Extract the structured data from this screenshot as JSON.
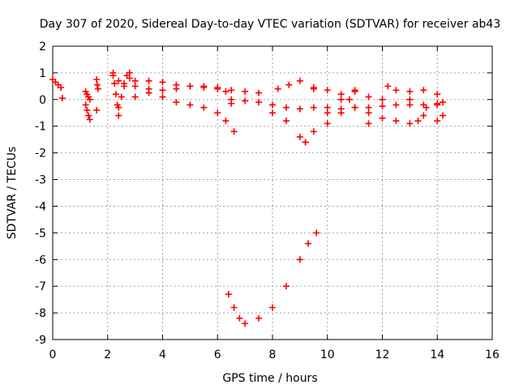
{
  "chart_data": {
    "type": "scatter",
    "title": "Day 307 of 2020, Sidereal Day-to-day VTEC variation (SDTVAR) for receiver ab43",
    "xlabel": "GPS time / hours",
    "ylabel": "SDTVAR / TECUs",
    "xlim": [
      0,
      16
    ],
    "ylim": [
      -9,
      2
    ],
    "xticks": [
      "0",
      "2",
      "4",
      "6",
      "8",
      "10",
      "12",
      "14",
      "16"
    ],
    "yticks": [
      "2",
      "1",
      "0",
      "-1",
      "-2",
      "-3",
      "-4",
      "-5",
      "-6",
      "-7",
      "-8",
      "-9"
    ],
    "grid": true,
    "marker": "+",
    "color": "#ff0000",
    "series": [
      {
        "x": [
          0.0,
          0.1,
          0.2,
          0.3
        ],
        "y": [
          0.75,
          0.65,
          0.55,
          0.45
        ]
      },
      {
        "x": [
          0.35
        ],
        "y": [
          0.05
        ]
      },
      {
        "x": [
          1.2,
          1.25,
          1.3,
          1.35
        ],
        "y": [
          0.3,
          0.2,
          0.1,
          0.0
        ]
      },
      {
        "x": [
          1.2,
          1.25,
          1.3,
          1.35
        ],
        "y": [
          -0.2,
          -0.4,
          -0.6,
          -0.75
        ]
      },
      {
        "x": [
          1.6,
          1.62,
          1.65
        ],
        "y": [
          0.75,
          0.55,
          0.4
        ]
      },
      {
        "x": [
          1.6
        ],
        "y": [
          -0.4
        ]
      },
      {
        "x": [
          2.2,
          2.25,
          2.3,
          2.35,
          2.4
        ],
        "y": [
          1.0,
          0.6,
          0.2,
          -0.2,
          -0.6
        ]
      },
      {
        "x": [
          2.4,
          2.5,
          2.6,
          2.7,
          2.8
        ],
        "y": [
          -0.3,
          0.1,
          0.5,
          0.9,
          1.0
        ]
      },
      {
        "x": [
          2.2,
          2.4,
          2.6,
          2.8
        ],
        "y": [
          0.9,
          0.7,
          0.6,
          0.8
        ]
      },
      {
        "x": [
          3.0,
          3.5,
          4.0,
          4.5,
          5.0,
          5.5,
          6.0,
          6.5,
          7.0,
          7.5
        ],
        "y": [
          0.7,
          0.7,
          0.65,
          0.55,
          0.5,
          0.45,
          0.4,
          0.35,
          0.3,
          0.25
        ]
      },
      {
        "x": [
          3.0,
          3.5,
          4.0,
          4.5,
          5.0,
          5.5,
          6.0,
          6.3,
          6.5
        ],
        "y": [
          0.1,
          0.25,
          0.35,
          0.4,
          0.5,
          0.5,
          0.45,
          0.3,
          0.0
        ]
      },
      {
        "x": [
          3.0,
          3.5,
          4.0,
          4.5,
          5.0,
          5.5,
          6.0,
          6.3,
          6.6
        ],
        "y": [
          0.5,
          0.4,
          0.1,
          -0.1,
          -0.2,
          -0.3,
          -0.5,
          -0.8,
          -1.2
        ]
      },
      {
        "x": [
          6.5,
          7.0,
          7.5,
          8.0,
          8.5,
          9.0,
          9.5,
          10.0,
          10.5,
          11.0,
          11.5,
          12.0,
          12.5,
          13.0,
          13.5,
          14.0
        ],
        "y": [
          -0.15,
          -0.05,
          -0.1,
          -0.2,
          -0.3,
          -0.35,
          -0.3,
          -0.3,
          -0.35,
          -0.3,
          -0.3,
          -0.25,
          -0.2,
          -0.2,
          -0.2,
          -0.15
        ]
      },
      {
        "x": [
          8.0,
          8.5,
          9.0,
          9.2
        ],
        "y": [
          -0.5,
          -0.8,
          -1.4,
          -1.6
        ]
      },
      {
        "x": [
          8.2,
          8.6,
          9.0,
          9.5
        ],
        "y": [
          0.4,
          0.55,
          0.7,
          0.45
        ]
      },
      {
        "x": [
          9.2,
          9.5,
          10.0,
          10.5,
          11.0
        ],
        "y": [
          -1.6,
          -1.2,
          -0.5,
          0.0,
          0.3
        ]
      },
      {
        "x": [
          9.5,
          10.0,
          10.5,
          11.0,
          11.5
        ],
        "y": [
          0.4,
          0.35,
          0.2,
          -0.3,
          -0.9
        ]
      },
      {
        "x": [
          10.0,
          10.5,
          10.8,
          11.0,
          11.5,
          12.0
        ],
        "y": [
          -0.9,
          -0.5,
          0.0,
          0.35,
          0.1,
          -0.7
        ]
      },
      {
        "x": [
          11.5,
          12.0,
          12.2,
          12.5,
          13.0,
          13.3
        ],
        "y": [
          -0.5,
          0.0,
          0.5,
          0.35,
          0.0,
          -0.8
        ]
      },
      {
        "x": [
          12.5,
          13.0,
          13.5,
          14.0
        ],
        "y": [
          -0.8,
          -0.9,
          -0.6,
          -0.2
        ]
      },
      {
        "x": [
          13.0,
          13.5,
          14.0,
          14.2
        ],
        "y": [
          0.3,
          0.35,
          0.2,
          -0.1
        ]
      },
      {
        "x": [
          13.6,
          14.0,
          14.2
        ],
        "y": [
          -0.3,
          -0.8,
          -0.6
        ]
      },
      {
        "x": [
          6.4,
          6.6,
          6.8,
          7.0,
          7.5,
          8.0,
          8.5,
          9.0,
          9.3,
          9.6
        ],
        "y": [
          -7.3,
          -7.8,
          -8.2,
          -8.4,
          -8.2,
          -7.8,
          -7.0,
          -6.0,
          -5.4,
          -5.0
        ]
      }
    ]
  }
}
